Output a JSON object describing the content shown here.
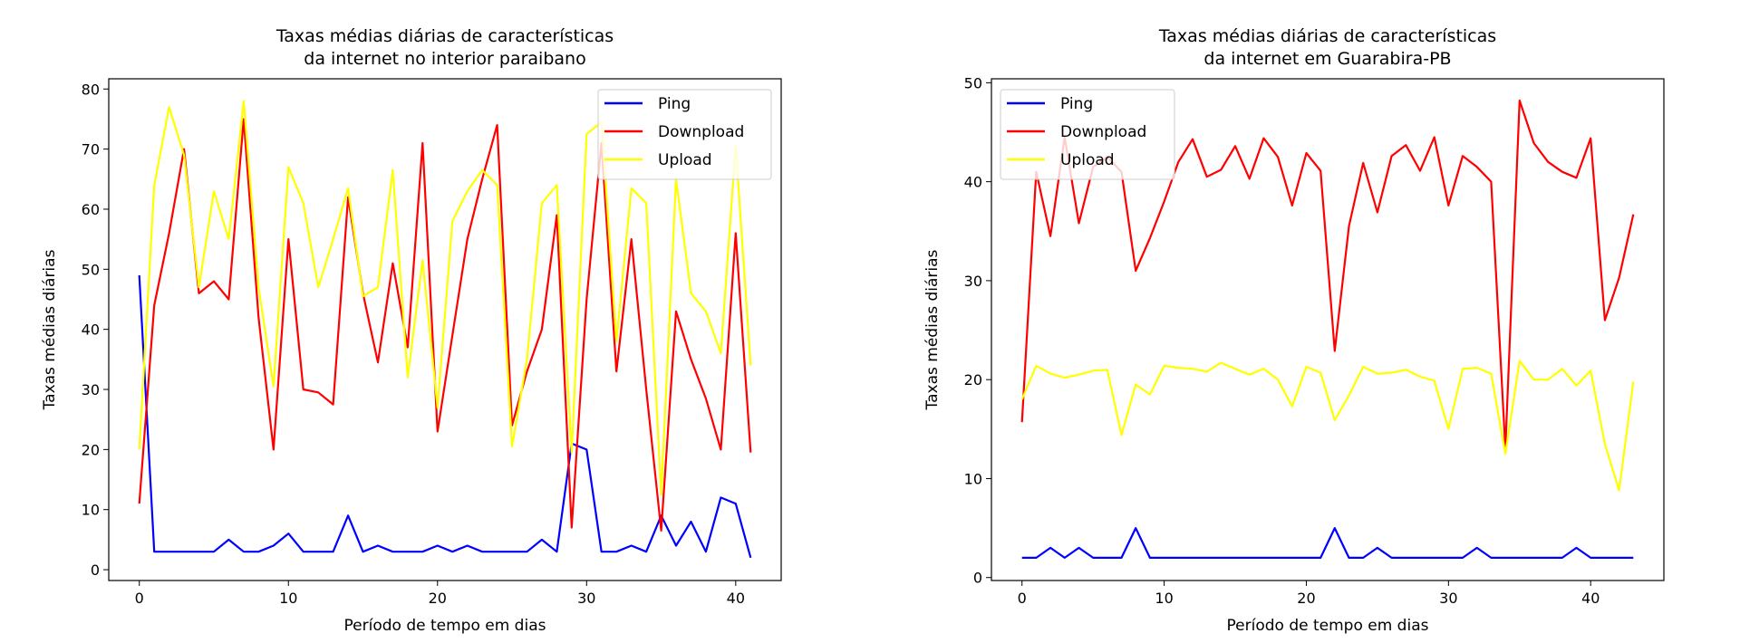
{
  "chart_data": [
    {
      "type": "line",
      "title": "Taxas médias diárias de características\nda internet no interior paraibano",
      "xlabel": "Período de tempo em dias",
      "ylabel": "Taxas médias diárias",
      "xlim": [
        -2.05,
        43.05
      ],
      "ylim": [
        -1.8,
        81.7
      ],
      "xticks": [
        0,
        10,
        20,
        30,
        40
      ],
      "yticks": [
        0,
        10,
        20,
        30,
        40,
        50,
        60,
        70,
        80
      ],
      "grid": false,
      "legend_position": "top-right",
      "series": [
        {
          "name": "Ping",
          "color": "#0000ff",
          "values": [
            49,
            3,
            3,
            3,
            3,
            3,
            5,
            3,
            3,
            4,
            6,
            3,
            3,
            3,
            9,
            3,
            4,
            3,
            3,
            3,
            4,
            3,
            4,
            3,
            3,
            3,
            3,
            5,
            3,
            21,
            20,
            3,
            3,
            4,
            3,
            9,
            4,
            8,
            3,
            12,
            11,
            2
          ]
        },
        {
          "name": "Downpload",
          "color": "#ff0000",
          "values": [
            11,
            44,
            56,
            70,
            46,
            48,
            45,
            75,
            42,
            20,
            55,
            30,
            29.5,
            27.5,
            62,
            46,
            34.5,
            51,
            37,
            71,
            23,
            39,
            55,
            65,
            74,
            24,
            33,
            40,
            59,
            7,
            45,
            71,
            33,
            55,
            30,
            6.5,
            43,
            35,
            28.5,
            20,
            56,
            19.5
          ]
        },
        {
          "name": "Upload",
          "color": "#ffff00",
          "values": [
            20,
            64,
            77,
            69,
            47,
            63,
            55,
            78,
            47,
            30.5,
            67,
            61,
            47,
            55,
            63.5,
            45.5,
            47,
            66.5,
            32,
            51.5,
            27,
            58,
            63,
            66.5,
            64,
            20.5,
            35,
            61,
            64,
            19.5,
            72.5,
            74.5,
            38,
            63.5,
            61,
            12.5,
            65,
            46,
            43,
            36,
            70.5,
            34
          ]
        }
      ]
    },
    {
      "type": "line",
      "title": "Taxas médias diárias de características\nda internet em Guarabira-PB",
      "xlabel": "Período de tempo em dias",
      "ylabel": "Taxas médias diárias",
      "xlim": [
        -2.15,
        45.15
      ],
      "ylim": [
        -0.3,
        50.4
      ],
      "xticks": [
        0,
        10,
        20,
        30,
        40
      ],
      "yticks": [
        0,
        10,
        20,
        30,
        40,
        50
      ],
      "grid": false,
      "legend_position": "top-left",
      "series": [
        {
          "name": "Ping",
          "color": "#0000ff",
          "values": [
            2,
            2,
            3,
            2,
            3,
            2,
            2,
            2,
            5,
            2,
            2,
            2,
            2,
            2,
            2,
            2,
            2,
            2,
            2,
            2,
            2,
            2,
            5,
            2,
            2,
            3,
            2,
            2,
            2,
            2,
            2,
            2,
            3,
            2,
            2,
            2,
            2,
            2,
            2,
            3,
            2,
            2,
            2,
            2
          ]
        },
        {
          "name": "Downpload",
          "color": "#ff0000",
          "values": [
            15.7,
            41,
            34.5,
            44.5,
            35.8,
            41.5,
            42.5,
            41,
            31,
            34.3,
            38,
            42,
            44.3,
            40.5,
            41.2,
            43.6,
            40.3,
            44.4,
            42.5,
            37.6,
            42.9,
            41.1,
            22.9,
            35.5,
            41.9,
            36.9,
            42.6,
            43.7,
            41.1,
            44.5,
            37.6,
            42.6,
            41.5,
            40,
            13,
            48.2,
            43.9,
            42,
            41,
            40.4,
            44.4,
            26,
            30.3,
            36.7
          ]
        },
        {
          "name": "Upload",
          "color": "#ffff00",
          "values": [
            18,
            21.4,
            20.6,
            20.2,
            20.5,
            20.9,
            21,
            14.4,
            19.5,
            18.5,
            21.4,
            21.2,
            21.1,
            20.8,
            21.7,
            21.1,
            20.5,
            21.1,
            20,
            17.3,
            21.3,
            20.7,
            15.9,
            18.4,
            21.3,
            20.6,
            20.7,
            21,
            20.3,
            19.9,
            15,
            21.1,
            21.2,
            20.6,
            12.5,
            21.9,
            20,
            20,
            21.1,
            19.4,
            20.9,
            13.5,
            8.8,
            19.8
          ]
        }
      ]
    }
  ]
}
